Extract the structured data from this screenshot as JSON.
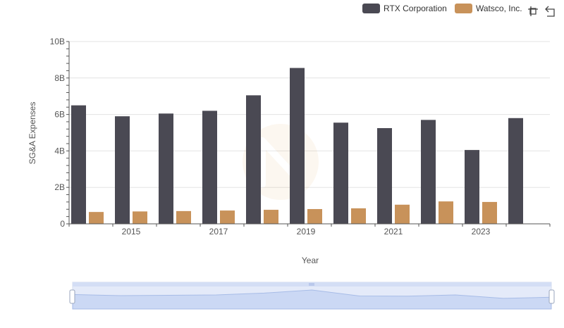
{
  "chart_data": {
    "type": "bar",
    "xlabel": "Year",
    "ylabel": "SG&A Expenses",
    "ylim": [
      0,
      10000000000
    ],
    "y_ticks": [
      {
        "value": 0,
        "label": "0"
      },
      {
        "value": 2000000000,
        "label": "2B"
      },
      {
        "value": 4000000000,
        "label": "4B"
      },
      {
        "value": 6000000000,
        "label": "6B"
      },
      {
        "value": 8000000000,
        "label": "8B"
      },
      {
        "value": 10000000000,
        "label": "10B"
      }
    ],
    "categories": [
      "2014",
      "2015",
      "2016",
      "2017",
      "2018",
      "2019",
      "2020",
      "2021",
      "2022",
      "2023",
      "2024"
    ],
    "x_tick_labels": [
      "2015",
      "2017",
      "2019",
      "2021",
      "2023"
    ],
    "series": [
      {
        "name": "RTX Corporation",
        "color": "#4a4953",
        "values": [
          6500000000,
          5900000000,
          6050000000,
          6200000000,
          7050000000,
          8550000000,
          5550000000,
          5250000000,
          5700000000,
          4050000000,
          5800000000
        ]
      },
      {
        "name": "Watsco, Inc.",
        "color": "#c8925a",
        "values": [
          650000000,
          680000000,
          700000000,
          730000000,
          770000000,
          810000000,
          850000000,
          1050000000,
          1230000000,
          1200000000,
          null
        ]
      }
    ],
    "legend_position": "top-right",
    "grid": true
  },
  "toolbar": {
    "icons": [
      "zoom-icon",
      "reset-zoom-icon"
    ]
  },
  "watermark": {
    "icon": "logo-watermark"
  }
}
